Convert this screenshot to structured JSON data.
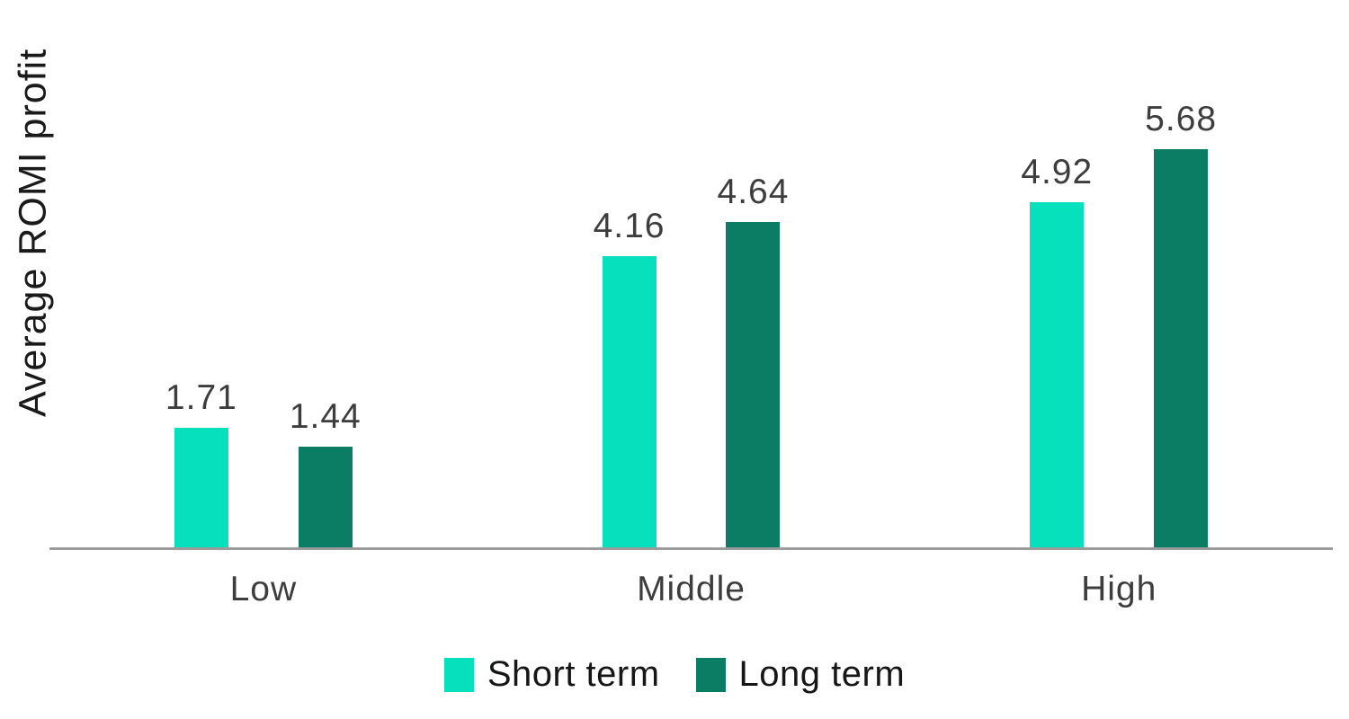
{
  "chart_data": {
    "type": "bar",
    "title": "",
    "xlabel": "",
    "ylabel": "Average ROMI profit",
    "categories": [
      "Low",
      "Middle",
      "High"
    ],
    "series": [
      {
        "name": "Short term",
        "color": "#07E0BC",
        "values": [
          1.71,
          4.16,
          4.92
        ]
      },
      {
        "name": "Long term",
        "color": "#0A7D64",
        "values": [
          1.44,
          4.64,
          5.68
        ]
      }
    ],
    "value_labels": [
      "1.71",
      "1.44",
      "4.16",
      "4.64",
      "4.92",
      "5.68"
    ],
    "ylim": [
      0,
      5.9
    ],
    "grid": false,
    "legend_position": "bottom",
    "axis_line_color": "#9B9B9B",
    "label_text_color": "#3D3D3D",
    "text_color": "#1A1A1A",
    "background_color": "#FFFFFF"
  }
}
